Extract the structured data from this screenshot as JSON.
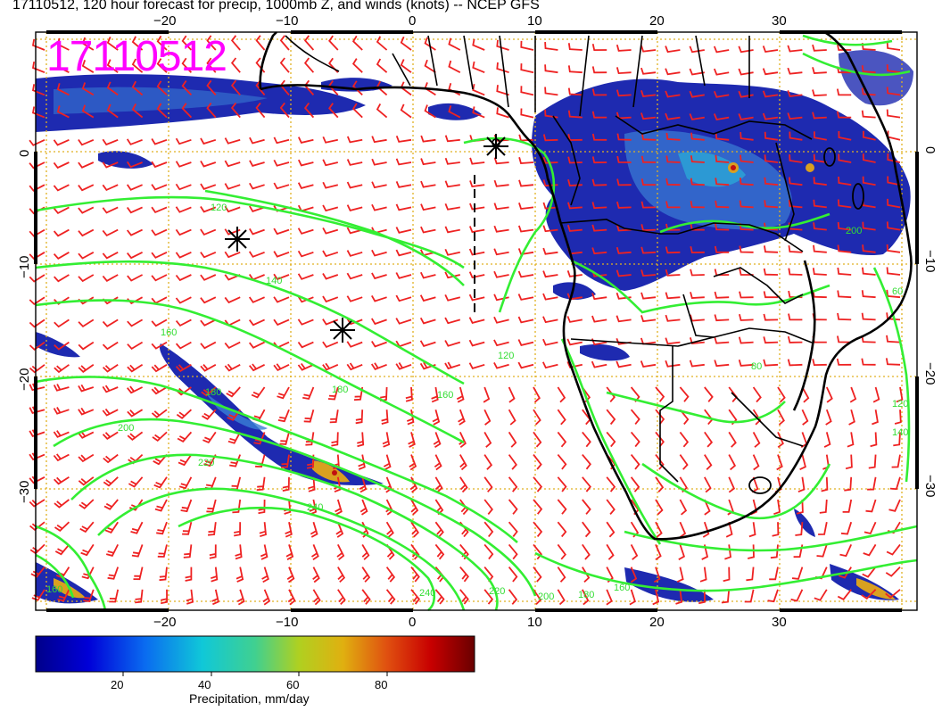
{
  "title": "17110512, 120 hour forecast for precip, 1000mb Z, and winds (knots) -- NCEP GFS",
  "date_stamp": "17110512",
  "colors": {
    "precip_low": "#1a1aa8",
    "precip_mid": "#2aa6d6",
    "contour": "#33ee33",
    "barb": "#ee2222",
    "coast": "#000000",
    "stamp": "#ff00ff"
  },
  "axes": {
    "lon_ticks": [
      "−20",
      "−10",
      "0",
      "10",
      "20",
      "30"
    ],
    "lat_ticks": [
      "0",
      "−10",
      "−20",
      "−30"
    ]
  },
  "contour_labels": [
    "120",
    "140",
    "160",
    "180",
    "200",
    "220",
    "240",
    "120",
    "160",
    "180",
    "200",
    "220",
    "240",
    "80",
    "60",
    "120",
    "140",
    "200",
    "160",
    "180",
    "160"
  ],
  "colorbar": {
    "label": "Precipitation, mm/day",
    "ticks": [
      "20",
      "40",
      "60",
      "80"
    ],
    "range": [
      0,
      100
    ]
  }
}
